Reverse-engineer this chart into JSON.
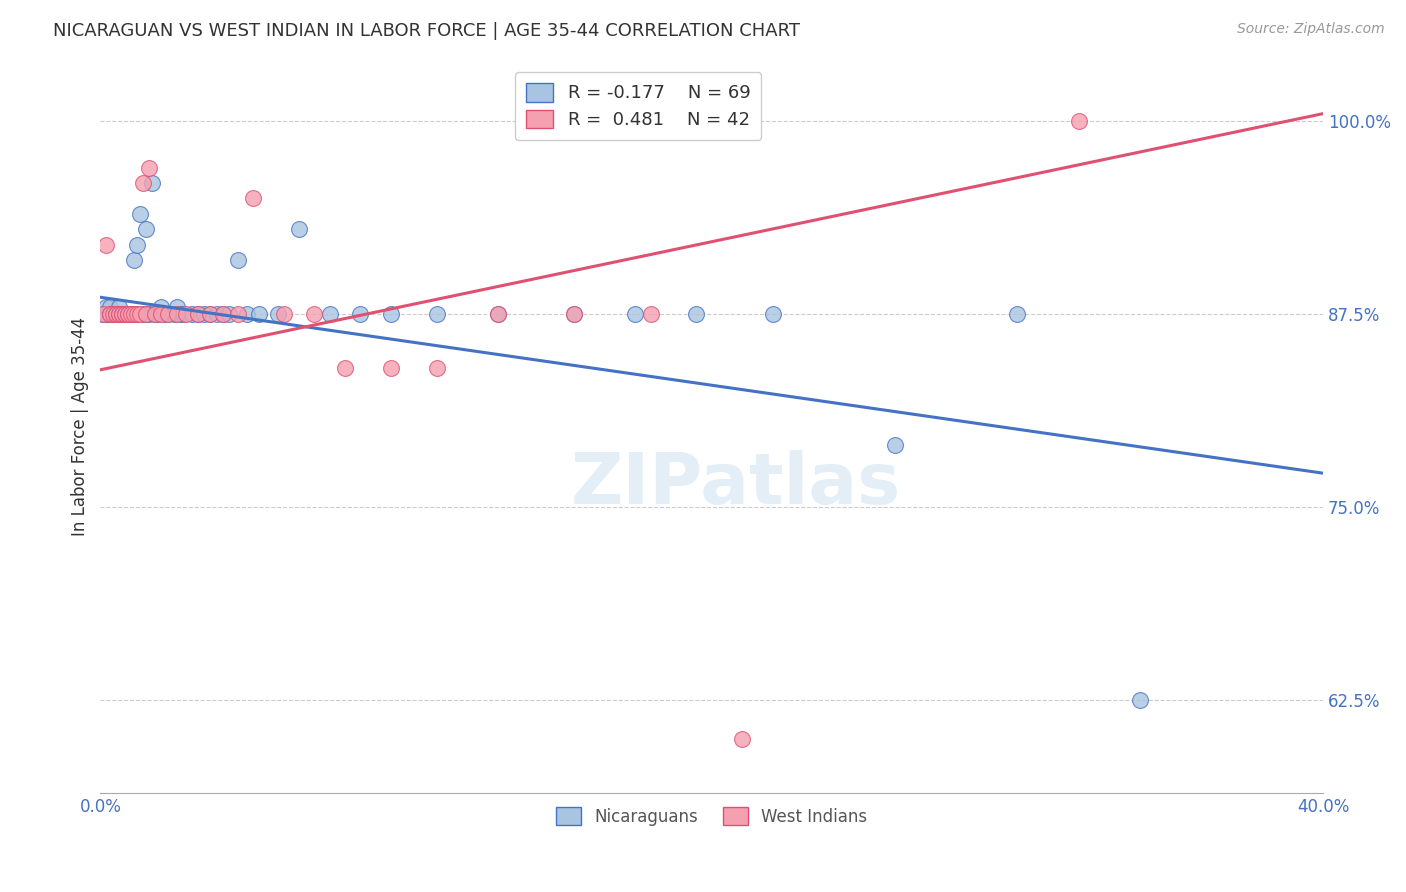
{
  "title": "NICARAGUAN VS WEST INDIAN IN LABOR FORCE | AGE 35-44 CORRELATION CHART",
  "source": "Source: ZipAtlas.com",
  "ylabel": "In Labor Force | Age 35-44",
  "xlim": [
    0.0,
    0.4
  ],
  "ylim": [
    0.565,
    1.04
  ],
  "yticks": [
    0.625,
    0.75,
    0.875,
    1.0
  ],
  "ytick_labels": [
    "62.5%",
    "75.0%",
    "87.5%",
    "100.0%"
  ],
  "xticks": [
    0.0,
    0.05,
    0.1,
    0.15,
    0.2,
    0.25,
    0.3,
    0.35,
    0.4
  ],
  "xtick_labels": [
    "0.0%",
    "",
    "",
    "",
    "",
    "",
    "",
    "",
    "40.0%"
  ],
  "blue_R": -0.177,
  "blue_N": 69,
  "pink_R": 0.481,
  "pink_N": 42,
  "blue_color": "#a8c4e0",
  "pink_color": "#f4a0b0",
  "blue_line_color": "#4472c4",
  "pink_line_color": "#e05070",
  "watermark": "ZIPatlas",
  "blue_line_x0": 0.0,
  "blue_line_y0": 0.886,
  "blue_line_x1": 0.4,
  "blue_line_y1": 0.772,
  "pink_line_x0": 0.0,
  "pink_line_y0": 0.839,
  "pink_line_x1": 0.4,
  "pink_line_y1": 1.005,
  "blue_scatter_x": [
    0.001,
    0.001,
    0.002,
    0.002,
    0.003,
    0.003,
    0.003,
    0.004,
    0.004,
    0.004,
    0.005,
    0.005,
    0.006,
    0.006,
    0.006,
    0.007,
    0.007,
    0.007,
    0.008,
    0.008,
    0.008,
    0.009,
    0.009,
    0.009,
    0.01,
    0.01,
    0.011,
    0.011,
    0.012,
    0.012,
    0.013,
    0.014,
    0.015,
    0.015,
    0.016,
    0.017,
    0.018,
    0.019,
    0.02,
    0.021,
    0.022,
    0.024,
    0.025,
    0.026,
    0.027,
    0.03,
    0.032,
    0.034,
    0.036,
    0.038,
    0.04,
    0.042,
    0.045,
    0.048,
    0.052,
    0.058,
    0.065,
    0.075,
    0.085,
    0.095,
    0.11,
    0.13,
    0.155,
    0.175,
    0.195,
    0.22,
    0.26,
    0.3,
    0.34
  ],
  "blue_scatter_y": [
    0.875,
    0.875,
    0.875,
    0.88,
    0.875,
    0.875,
    0.88,
    0.875,
    0.875,
    0.875,
    0.875,
    0.875,
    0.875,
    0.875,
    0.88,
    0.875,
    0.875,
    0.875,
    0.875,
    0.875,
    0.875,
    0.875,
    0.875,
    0.875,
    0.875,
    0.875,
    0.91,
    0.875,
    0.875,
    0.92,
    0.94,
    0.875,
    0.93,
    0.875,
    0.875,
    0.96,
    0.875,
    0.875,
    0.88,
    0.875,
    0.875,
    0.875,
    0.88,
    0.875,
    0.875,
    0.875,
    0.875,
    0.875,
    0.875,
    0.875,
    0.875,
    0.875,
    0.91,
    0.875,
    0.875,
    0.875,
    0.93,
    0.875,
    0.875,
    0.875,
    0.875,
    0.875,
    0.875,
    0.875,
    0.875,
    0.875,
    0.79,
    0.875,
    0.625
  ],
  "pink_scatter_x": [
    0.001,
    0.002,
    0.003,
    0.003,
    0.004,
    0.005,
    0.005,
    0.006,
    0.006,
    0.007,
    0.007,
    0.008,
    0.008,
    0.009,
    0.009,
    0.01,
    0.011,
    0.012,
    0.013,
    0.014,
    0.015,
    0.016,
    0.018,
    0.02,
    0.022,
    0.025,
    0.028,
    0.032,
    0.036,
    0.04,
    0.045,
    0.05,
    0.06,
    0.07,
    0.08,
    0.095,
    0.11,
    0.13,
    0.155,
    0.18,
    0.21,
    0.32
  ],
  "pink_scatter_y": [
    0.875,
    0.92,
    0.875,
    0.875,
    0.875,
    0.875,
    0.875,
    0.875,
    0.875,
    0.875,
    0.875,
    0.875,
    0.875,
    0.875,
    0.875,
    0.875,
    0.875,
    0.875,
    0.875,
    0.96,
    0.875,
    0.97,
    0.875,
    0.875,
    0.875,
    0.875,
    0.875,
    0.875,
    0.875,
    0.875,
    0.875,
    0.95,
    0.875,
    0.875,
    0.84,
    0.84,
    0.84,
    0.875,
    0.875,
    0.875,
    0.6,
    1.0
  ]
}
